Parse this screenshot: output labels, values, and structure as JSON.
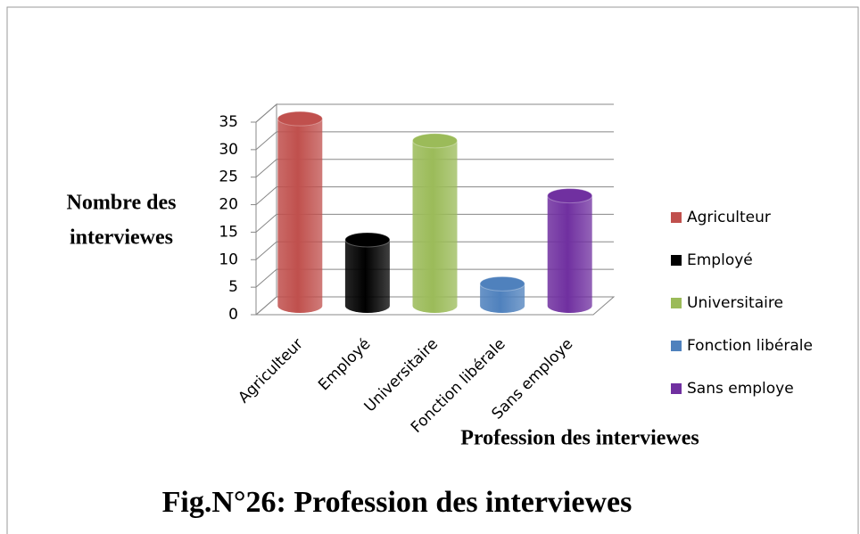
{
  "chart_data": {
    "type": "bar3d",
    "title": "Fig.N°26: Profession des interviewes",
    "y_label": [
      "Nombre des",
      "interviewes"
    ],
    "x_label": "Profession des interviewes",
    "categories": [
      "Agriculteur",
      "Employé",
      "Universitaire",
      "Fonction libérale",
      "Sans employe"
    ],
    "values": [
      34,
      12,
      30,
      4,
      20
    ],
    "colors": [
      "#c0504d",
      "#000000",
      "#9bbb59",
      "#4f81bd",
      "#7030a0"
    ],
    "ylim": [
      0,
      35
    ],
    "yticks": [
      0,
      5,
      10,
      15,
      20,
      25,
      30,
      35
    ],
    "grid": true,
    "legend": "right"
  }
}
